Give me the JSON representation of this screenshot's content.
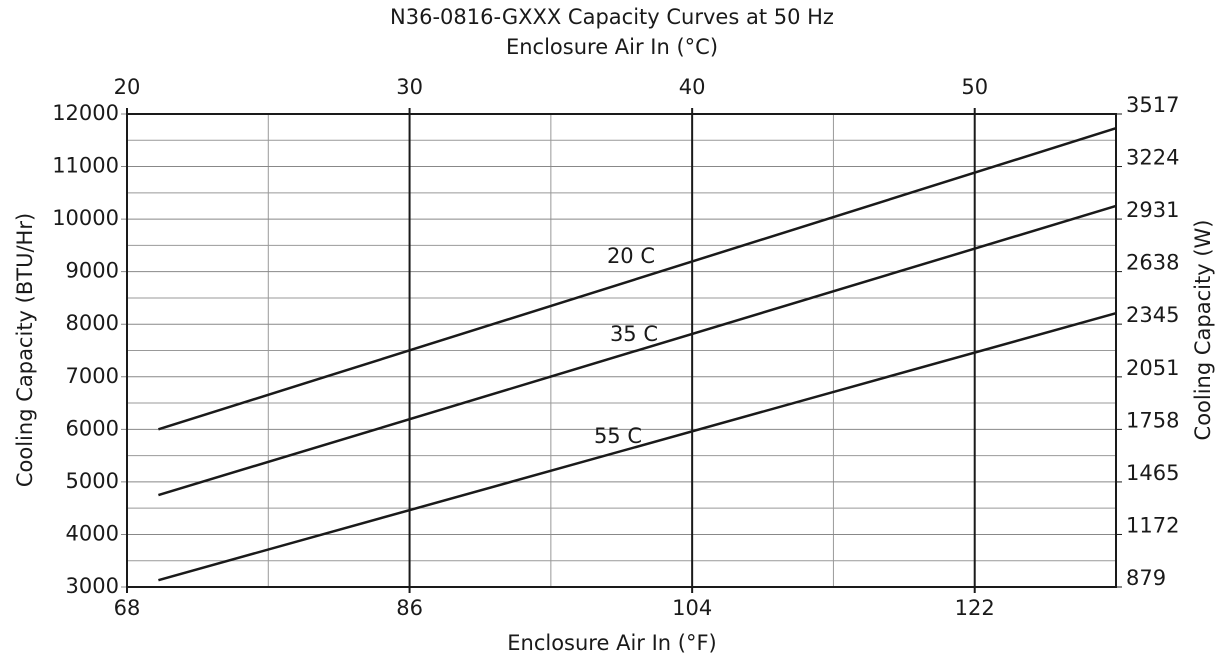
{
  "chart_data": {
    "type": "line",
    "title": "N36-0816-GXXX Capacity Curves at 50 Hz",
    "x2_label": "Enclosure Air In (°C)",
    "xlabel": "Enclosure Air In (°F)",
    "ylabel": "Cooling Capacity (BTU/Hr)",
    "y2label": "Cooling Capacity (W)",
    "x": [
      70,
      131
    ],
    "series": [
      {
        "name": "20 C",
        "color": "#1a1a1a",
        "values": [
          6000,
          11730
        ]
      },
      {
        "name": "35 C",
        "color": "#1a1a1a",
        "values": [
          4750,
          10250
        ]
      },
      {
        "name": "55 C",
        "color": "#1a1a1a",
        "values": [
          3130,
          8210
        ]
      }
    ],
    "xlim": [
      68,
      131
    ],
    "xticks": [
      68,
      86,
      104,
      122
    ],
    "xminor": [
      77,
      95,
      113
    ],
    "x2lim": [
      20,
      55
    ],
    "x2ticks": [
      20,
      30,
      40,
      50
    ],
    "ylim": [
      3000,
      12000
    ],
    "yticks": [
      3000,
      4000,
      5000,
      6000,
      7000,
      8000,
      9000,
      10000,
      11000,
      12000
    ],
    "yminor": [
      3500,
      4500,
      5500,
      6500,
      7500,
      8500,
      9500,
      10500,
      11500
    ],
    "y2lim": [
      879,
      3517
    ],
    "y2ticks": [
      879,
      1172,
      1465,
      1758,
      2051,
      2345,
      2638,
      2931,
      3224,
      3517
    ],
    "grid": true
  }
}
